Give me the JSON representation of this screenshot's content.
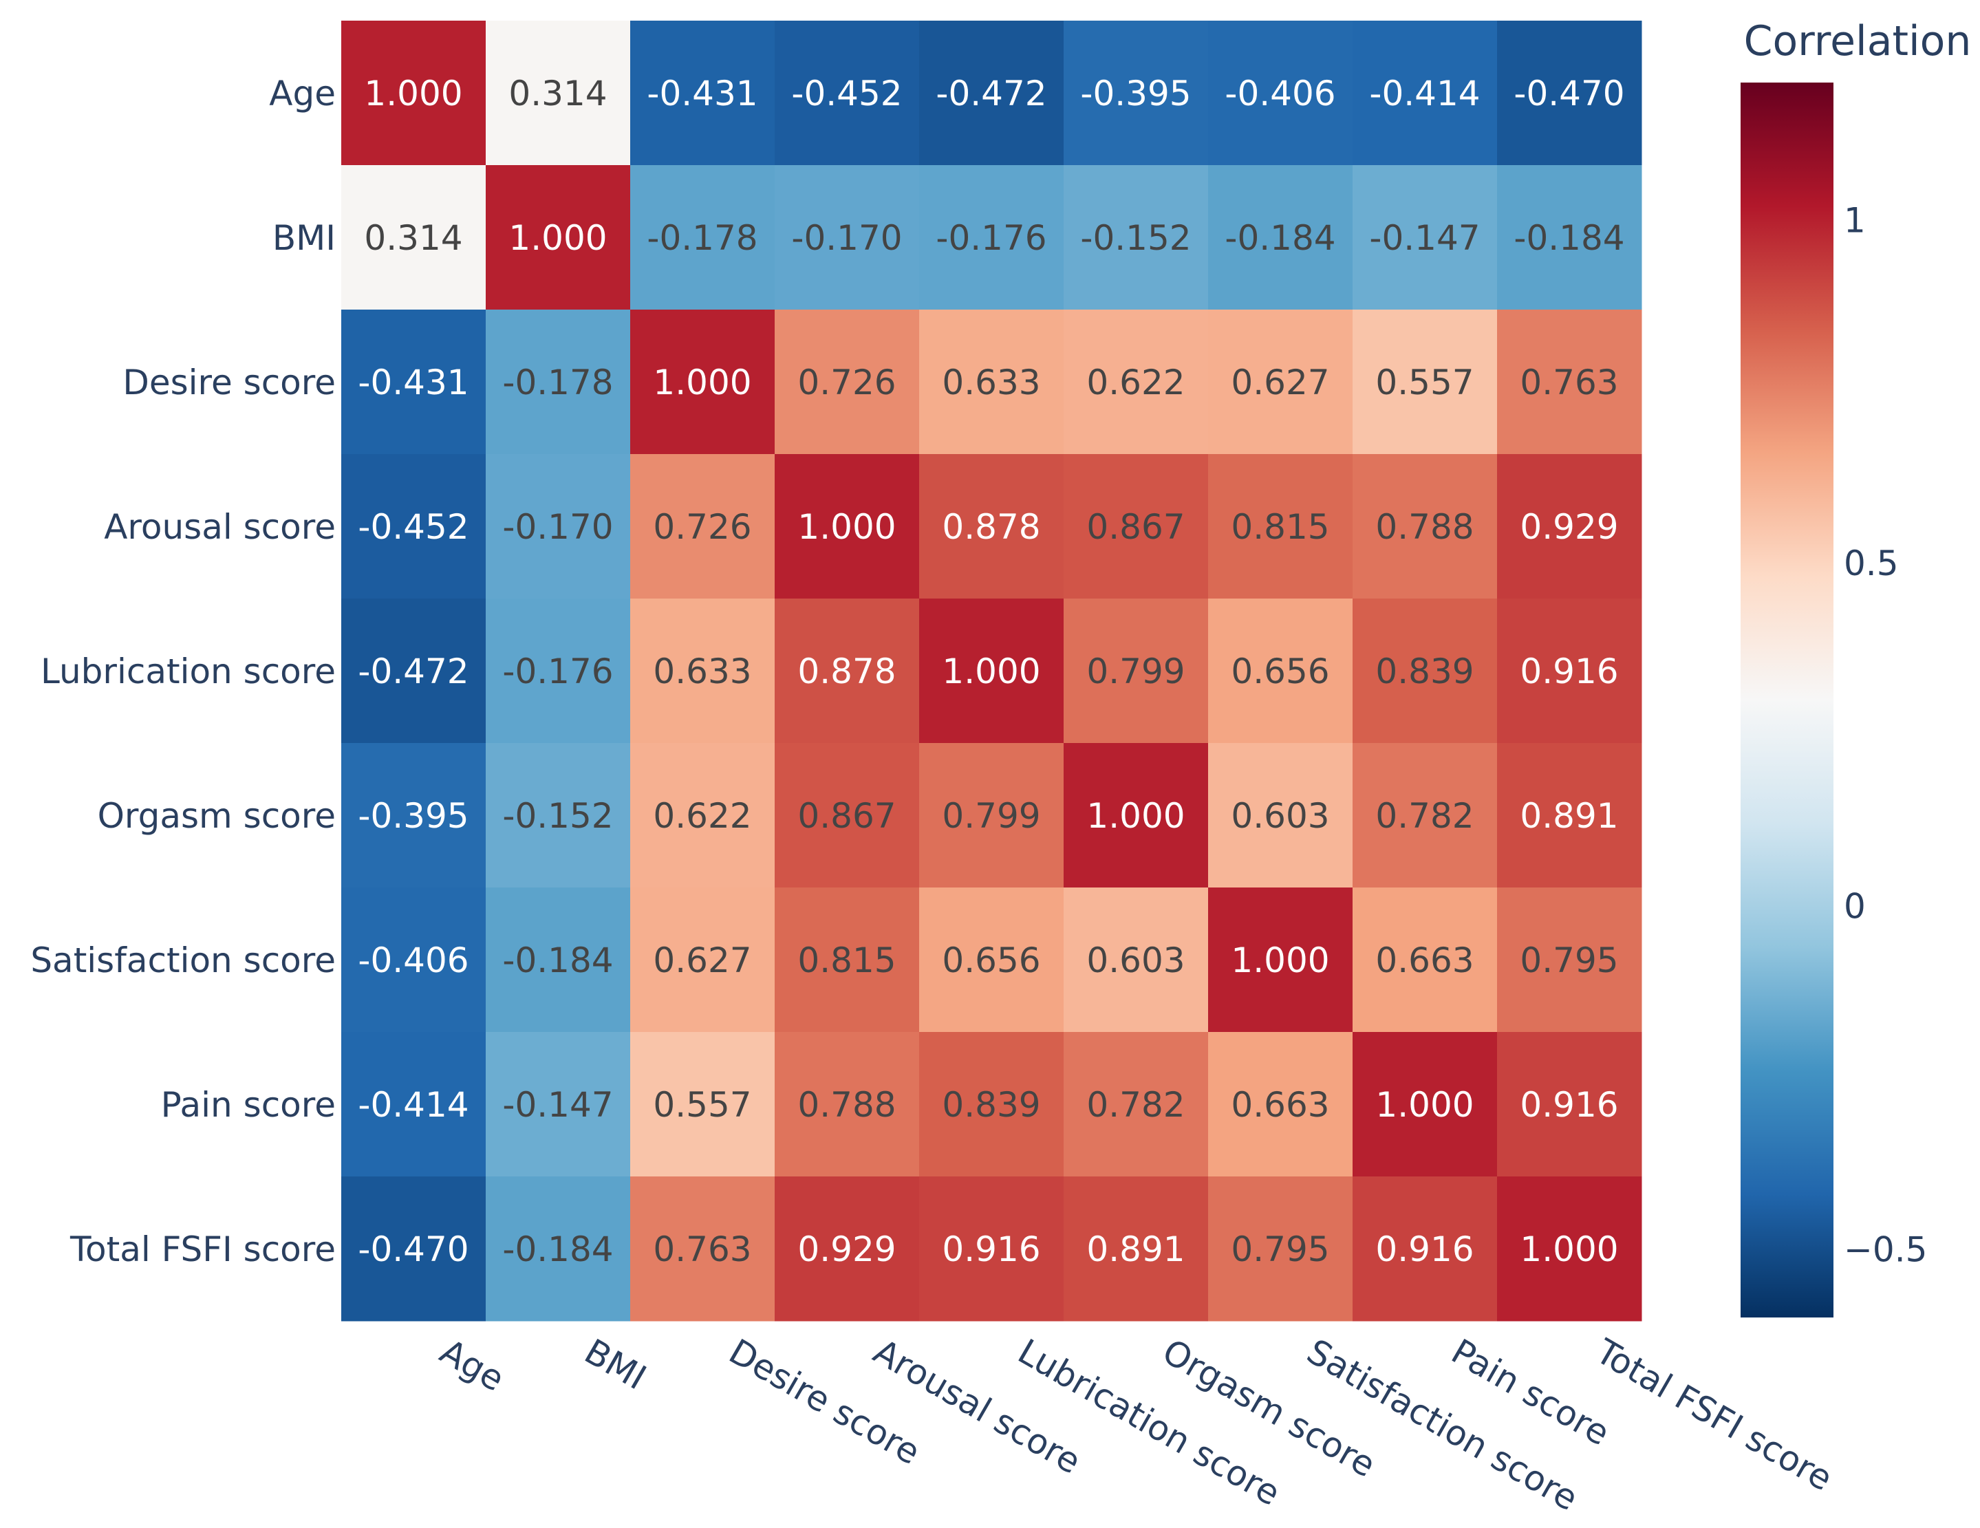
{
  "chart_data": {
    "type": "heatmap",
    "title": "",
    "xlabel": "",
    "ylabel": "",
    "rows": [
      "Age",
      "BMI",
      "Desire score",
      "Arousal score",
      "Lubrication score",
      "Orgasm score",
      "Satisfaction score",
      "Pain score",
      "Total FSFI score"
    ],
    "cols": [
      "Age",
      "BMI",
      "Desire score",
      "Arousal score",
      "Lubrication score",
      "Orgasm score",
      "Satisfaction score",
      "Pain score",
      "Total FSFI score"
    ],
    "values": [
      [
        1.0,
        0.314,
        -0.431,
        -0.452,
        -0.472,
        -0.395,
        -0.406,
        -0.414,
        -0.47
      ],
      [
        0.314,
        1.0,
        -0.178,
        -0.17,
        -0.176,
        -0.152,
        -0.184,
        -0.147,
        -0.184
      ],
      [
        -0.431,
        -0.178,
        1.0,
        0.726,
        0.633,
        0.622,
        0.627,
        0.557,
        0.763
      ],
      [
        -0.452,
        -0.17,
        0.726,
        1.0,
        0.878,
        0.867,
        0.815,
        0.788,
        0.929
      ],
      [
        -0.472,
        -0.176,
        0.633,
        0.878,
        1.0,
        0.799,
        0.656,
        0.839,
        0.916
      ],
      [
        -0.395,
        -0.152,
        0.622,
        0.867,
        0.799,
        1.0,
        0.603,
        0.782,
        0.891
      ],
      [
        -0.406,
        -0.184,
        0.627,
        0.815,
        0.656,
        0.603,
        1.0,
        0.663,
        0.795
      ],
      [
        -0.414,
        -0.147,
        0.557,
        0.788,
        0.839,
        0.782,
        0.663,
        1.0,
        0.916
      ],
      [
        -0.47,
        -0.184,
        0.763,
        0.929,
        0.916,
        0.891,
        0.795,
        0.916,
        1.0
      ]
    ],
    "cell_labels": [
      [
        "1.000",
        "0.314",
        "-0.431",
        "-0.452",
        "-0.472",
        "-0.395",
        "-0.406",
        "-0.414",
        "-0.470"
      ],
      [
        "0.314",
        "1.000",
        "-0.178",
        "-0.170",
        "-0.176",
        "-0.152",
        "-0.184",
        "-0.147",
        "-0.184"
      ],
      [
        "-0.431",
        "-0.178",
        "1.000",
        "0.726",
        "0.633",
        "0.622",
        "0.627",
        "0.557",
        "0.763"
      ],
      [
        "-0.452",
        "-0.170",
        "0.726",
        "1.000",
        "0.878",
        "0.867",
        "0.815",
        "0.788",
        "0.929"
      ],
      [
        "-0.472",
        "-0.176",
        "0.633",
        "0.878",
        "1.000",
        "0.799",
        "0.656",
        "0.839",
        "0.916"
      ],
      [
        "-0.395",
        "-0.152",
        "0.622",
        "0.867",
        "0.799",
        "1.000",
        "0.603",
        "0.782",
        "0.891"
      ],
      [
        "-0.406",
        "-0.184",
        "0.627",
        "0.815",
        "0.656",
        "0.603",
        "1.000",
        "0.663",
        "0.795"
      ],
      [
        "-0.414",
        "-0.147",
        "0.557",
        "0.788",
        "0.839",
        "0.782",
        "0.663",
        "1.000",
        "0.916"
      ],
      [
        "-0.470",
        "-0.184",
        "0.763",
        "0.929",
        "0.916",
        "0.891",
        "0.795",
        "0.916",
        "1.000"
      ]
    ],
    "colorscale": {
      "name": "RdBu",
      "min": -0.6,
      "max": 1.2,
      "stops": [
        "#053061",
        "#2166ac",
        "#4393c3",
        "#92c5de",
        "#d1e5f0",
        "#f7f7f7",
        "#fddbc7",
        "#f4a582",
        "#d6604d",
        "#b2182b",
        "#67001f"
      ]
    },
    "colorbar": {
      "title": "Correlation",
      "ticks": [
        -0.5,
        0,
        0.5,
        1
      ],
      "tick_labels": [
        "−0.5",
        "0",
        "0.5",
        "1"
      ]
    }
  }
}
